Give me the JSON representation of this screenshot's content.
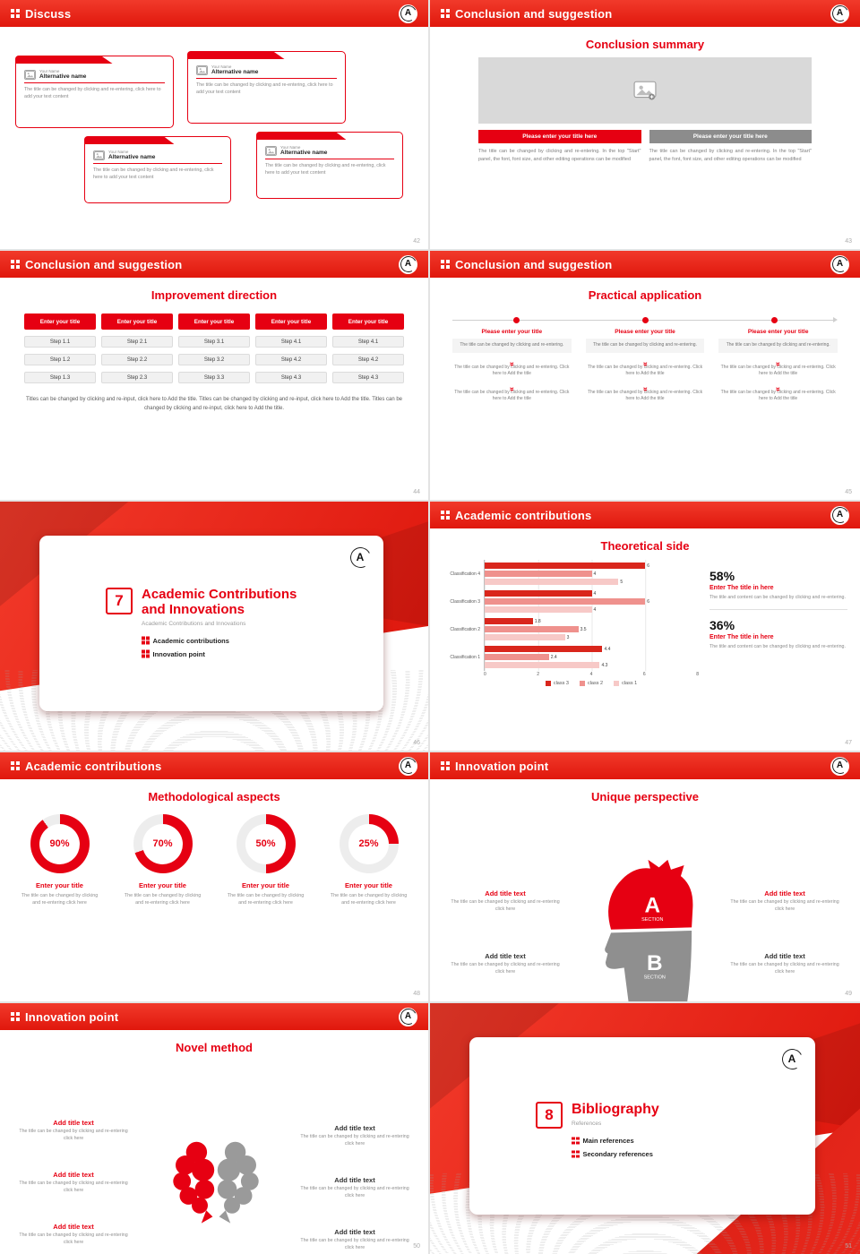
{
  "theme": {
    "red": "#e60012",
    "red_dark": "#c8150e",
    "gray_button": "#8c8c8c",
    "placeholder_gray": "#d9d9d9",
    "donut_track": "#ededed"
  },
  "logo_text": "A",
  "icons": {
    "double_chevron_down": "»"
  },
  "chart_data": [
    {
      "type": "bar",
      "orientation": "horizontal",
      "title": "Theoretical side",
      "categories": [
        "Classification 4",
        "Classification 3",
        "Classification 2",
        "Classification 1"
      ],
      "series": [
        {
          "name": "class 3",
          "color": "#d9261c",
          "values": [
            6,
            4,
            1.8,
            4.4
          ]
        },
        {
          "name": "class 2",
          "color": "#ef918d",
          "values": [
            4,
            6,
            3.5,
            2.4
          ]
        },
        {
          "name": "class 1",
          "color": "#f7c9c7",
          "values": [
            5,
            4,
            3,
            4.3
          ]
        }
      ],
      "xlim": [
        0,
        8
      ],
      "xticks": [
        0,
        2,
        4,
        6,
        8
      ],
      "grid": true,
      "legend_position": "bottom"
    },
    {
      "type": "donut",
      "title": "Methodological aspects",
      "labels": [
        "Enter your title",
        "Enter your title",
        "Enter your title",
        "Enter your title"
      ],
      "values": [
        90,
        70,
        50,
        25
      ],
      "unit": "%"
    }
  ],
  "slides": {
    "s42": {
      "header": "Discuss",
      "page": "42",
      "cards": [
        {
          "name_label": "Your Name",
          "alt_name": "Alternative name",
          "body": "The title can be changed by clicking and re-entering, click here to add your text content"
        },
        {
          "name_label": "Your Name",
          "alt_name": "Alternative name",
          "body": "The title can be changed by clicking and re-entering, click here to add your text content"
        },
        {
          "name_label": "Your Name",
          "alt_name": "Alternative name",
          "body": "The title can be changed by clicking and re-entering, click here to add your text content"
        },
        {
          "name_label": "Your Name",
          "alt_name": "Alternative name",
          "body": "The title can be changed by clicking and re-entering, click here to add your text content"
        }
      ]
    },
    "s43": {
      "header": "Conclusion and suggestion",
      "page": "43",
      "title": "Conclusion summary",
      "left_button": "Please enter your title here",
      "right_button": "Please enter your title here",
      "left_body": "The title can be changed by clicking and re-entering. In the top \"Start\" panel, the font, font size, and other editing operations can be modified",
      "right_body": "The title can be changed by clicking and re-entering. In the top \"Start\" panel, the font, font size, and other editing operations can be modified"
    },
    "s44": {
      "header": "Conclusion and suggestion",
      "page": "44",
      "title": "Improvement direction",
      "columns": [
        {
          "button": "Enter your title",
          "steps": [
            "Step 1.1",
            "Step 1.2",
            "Step 1.3"
          ]
        },
        {
          "button": "Enter your title",
          "steps": [
            "Step 2.1",
            "Step 2.2",
            "Step 2.3"
          ]
        },
        {
          "button": "Enter your title",
          "steps": [
            "Step 3.1",
            "Step 3.2",
            "Step 3.3"
          ]
        },
        {
          "button": "Enter your title",
          "steps": [
            "Step 4.1",
            "Step 4.2",
            "Step 4.3"
          ]
        },
        {
          "button": "Enter your title",
          "steps": [
            "Step 4.1",
            "Step 4.2",
            "Step 4.3"
          ]
        }
      ],
      "footer": "Titles can be changed by clicking and re-input, click here to Add the title. Titles can be changed by clicking and re-input, click here to Add the title. Titles can be changed by clicking and re-input, click here to Add the title."
    },
    "s45": {
      "header": "Conclusion and suggestion",
      "page": "45",
      "title": "Practical application",
      "columns": [
        {
          "title": "Please enter your title",
          "box": "The title can be changed by clicking and re-entering.",
          "item1": "The title can be changed by clicking and re-entering. Click here to Add the title",
          "item2": "The title can be changed by clicking and re-entering. Click here to Add the title"
        },
        {
          "title": "Please enter your title",
          "box": "The title can be changed by clicking and re-entering.",
          "item1": "The title can be changed by clicking and re-entering. Click here to Add the title",
          "item2": "The title can be changed by clicking and re-entering. Click here to Add the title"
        },
        {
          "title": "Please enter your title",
          "box": "The title can be changed by clicking and re-entering.",
          "item1": "The title can be changed by clicking and re-entering. Click here to Add the title",
          "item2": "The title can be changed by clicking and re-entering. Click here to Add the title"
        }
      ]
    },
    "s46": {
      "page": "46",
      "number": "7",
      "title_line1": "Academic Contributions",
      "title_line2": "and Innovations",
      "subtitle": "Academic Contributions and Innovations",
      "bullet1": "Academic contributions",
      "bullet2": "Innovation point"
    },
    "s47": {
      "header": "Academic contributions",
      "page": "47",
      "title": "Theoretical side",
      "stat1": {
        "pct": "58%",
        "title": "Enter The title in here",
        "body": "The title and content can be changed by clicking and re-entering."
      },
      "stat2": {
        "pct": "36%",
        "title": "Enter The title in here",
        "body": "The title and content can be changed by clicking and re-entering."
      }
    },
    "s48": {
      "header": "Academic contributions",
      "page": "48",
      "title": "Methodological aspects",
      "donuts": [
        {
          "label": "90%",
          "title": "Enter your title",
          "body": "The title can be changed by clicking and re-entering click here"
        },
        {
          "label": "70%",
          "title": "Enter your title",
          "body": "The title can be changed by clicking and re-entering click here"
        },
        {
          "label": "50%",
          "title": "Enter your title",
          "body": "The title can be changed by clicking and re-entering click here"
        },
        {
          "label": "25%",
          "title": "Enter your title",
          "body": "The title can be changed by clicking and re-entering click here"
        }
      ]
    },
    "s49": {
      "header": "Innovation point",
      "page": "49",
      "title": "Unique perspective",
      "section_a": "A",
      "section_label_a": "SECTION",
      "section_b": "B",
      "section_label_b": "SECTION",
      "blocks_left": [
        {
          "title": "Add title text",
          "body": "The title can be changed by clicking and re-entering click here"
        },
        {
          "title": "Add title text",
          "body": "The title can be changed by clicking and re-entering click here"
        }
      ],
      "blocks_right": [
        {
          "title": "Add title text",
          "body": "The title can be changed by clicking and re-entering click here"
        },
        {
          "title": "Add title text",
          "body": "The title can be changed by clicking and re-entering click here"
        }
      ]
    },
    "s50": {
      "header": "Innovation point",
      "page": "50",
      "title": "Novel method",
      "blocks_left": [
        {
          "title": "Add title text",
          "body": "The title can be changed by clicking and re-entering click here"
        },
        {
          "title": "Add title text",
          "body": "The title can be changed by clicking and re-entering click here"
        },
        {
          "title": "Add title text",
          "body": "The title can be changed by clicking and re-entering click here"
        }
      ],
      "blocks_right": [
        {
          "title": "Add title text",
          "body": "The title can be changed by clicking and re-entering click here"
        },
        {
          "title": "Add title text",
          "body": "The title can be changed by clicking and re-entering click here"
        },
        {
          "title": "Add title text",
          "body": "The title can be changed by clicking and re-entering click here"
        }
      ]
    },
    "s51": {
      "page": "51",
      "number": "8",
      "title": "Bibliography",
      "subtitle": "References",
      "bullet1": "Main references",
      "bullet2": "Secondary references"
    }
  }
}
